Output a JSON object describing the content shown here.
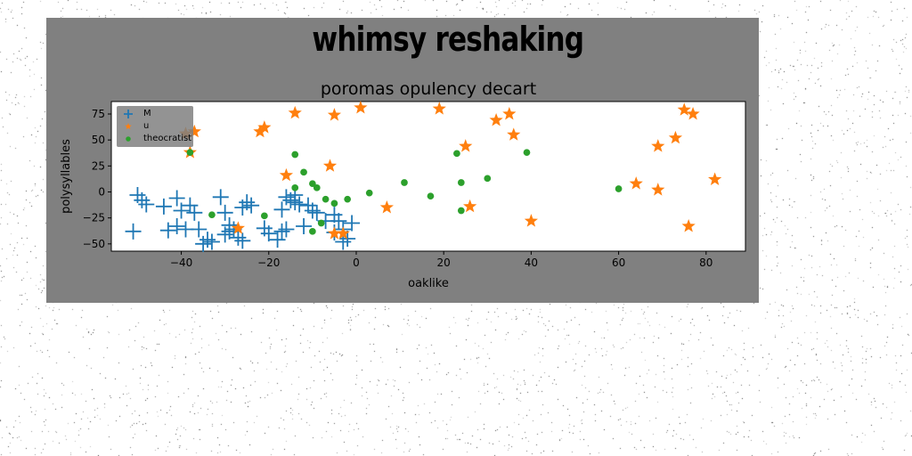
{
  "page_title": "whimsy reshaking",
  "chart_data": {
    "type": "scatter",
    "title": "poromas opulency decart",
    "xlabel": "oaklike",
    "ylabel": "polysyllables",
    "xlim": [
      -56,
      89
    ],
    "ylim": [
      -57,
      87
    ],
    "xticks": [
      -40,
      -20,
      0,
      20,
      40,
      60,
      80
    ],
    "yticks": [
      -50,
      -25,
      0,
      25,
      50,
      75
    ],
    "grid": false,
    "legend_position": "top-left",
    "series": [
      {
        "name": "M",
        "marker": "plus",
        "color": "#1f77b4",
        "points": [
          [
            -50,
            -3
          ],
          [
            -49,
            -8
          ],
          [
            -48,
            -12
          ],
          [
            -51,
            -38
          ],
          [
            -43,
            -37
          ],
          [
            -41,
            -33
          ],
          [
            -39,
            -36
          ],
          [
            -44,
            -14
          ],
          [
            -41,
            -6
          ],
          [
            -40,
            -18
          ],
          [
            -38,
            -13
          ],
          [
            -37,
            -20
          ],
          [
            -36,
            -36
          ],
          [
            -34,
            -46
          ],
          [
            -35,
            -50
          ],
          [
            -33,
            -48
          ],
          [
            -31,
            -5
          ],
          [
            -30,
            -20
          ],
          [
            -29,
            -32
          ],
          [
            -28,
            -36
          ],
          [
            -27,
            -44
          ],
          [
            -26,
            -47
          ],
          [
            -29,
            -38
          ],
          [
            -30,
            -41
          ],
          [
            -26,
            -15
          ],
          [
            -25,
            -10
          ],
          [
            -24,
            -13
          ],
          [
            -21,
            -35
          ],
          [
            -20,
            -40
          ],
          [
            -18,
            -46
          ],
          [
            -17,
            -38
          ],
          [
            -16,
            -36
          ],
          [
            -17,
            -17
          ],
          [
            -16,
            -5
          ],
          [
            -15,
            -8
          ],
          [
            -14,
            -10
          ],
          [
            -14,
            -3
          ],
          [
            -13,
            -12
          ],
          [
            -12,
            -33
          ],
          [
            -11,
            -13
          ],
          [
            -10,
            -18
          ],
          [
            -9,
            -20
          ],
          [
            -7,
            -28
          ],
          [
            -5,
            -22
          ],
          [
            -4,
            -28
          ],
          [
            -3,
            -36
          ],
          [
            -2,
            -45
          ],
          [
            -1,
            -30
          ],
          [
            -5,
            -39
          ],
          [
            -3,
            -48
          ]
        ]
      },
      {
        "name": "u",
        "marker": "star",
        "color": "#ff7f0e",
        "points": [
          [
            -39,
            56
          ],
          [
            -37,
            58
          ],
          [
            -38,
            38
          ],
          [
            -22,
            58
          ],
          [
            -21,
            62
          ],
          [
            -14,
            76
          ],
          [
            -5,
            74
          ],
          [
            1,
            81
          ],
          [
            19,
            80
          ],
          [
            25,
            44
          ],
          [
            32,
            69
          ],
          [
            35,
            75
          ],
          [
            36,
            55
          ],
          [
            75,
            79
          ],
          [
            77,
            75
          ],
          [
            69,
            44
          ],
          [
            73,
            52
          ],
          [
            64,
            8
          ],
          [
            69,
            2
          ],
          [
            82,
            12
          ],
          [
            76,
            -33
          ],
          [
            40,
            -28
          ],
          [
            26,
            -14
          ],
          [
            7,
            -15
          ],
          [
            -16,
            16
          ],
          [
            -6,
            25
          ],
          [
            -5,
            -40
          ],
          [
            -3,
            -40
          ],
          [
            -27,
            -35
          ]
        ]
      },
      {
        "name": "theocratist",
        "marker": "circle",
        "color": "#2ca02c",
        "points": [
          [
            -38,
            38
          ],
          [
            -33,
            -22
          ],
          [
            -21,
            -23
          ],
          [
            -14,
            36
          ],
          [
            -12,
            19
          ],
          [
            -14,
            4
          ],
          [
            -10,
            8
          ],
          [
            -9,
            4
          ],
          [
            -7,
            -7
          ],
          [
            -5,
            -11
          ],
          [
            -2,
            -7
          ],
          [
            3,
            -1
          ],
          [
            11,
            9
          ],
          [
            17,
            -4
          ],
          [
            23,
            37
          ],
          [
            24,
            9
          ],
          [
            24,
            -18
          ],
          [
            30,
            13
          ],
          [
            39,
            38
          ],
          [
            60,
            3
          ],
          [
            -10,
            -38
          ],
          [
            -8,
            -30
          ]
        ]
      }
    ]
  }
}
